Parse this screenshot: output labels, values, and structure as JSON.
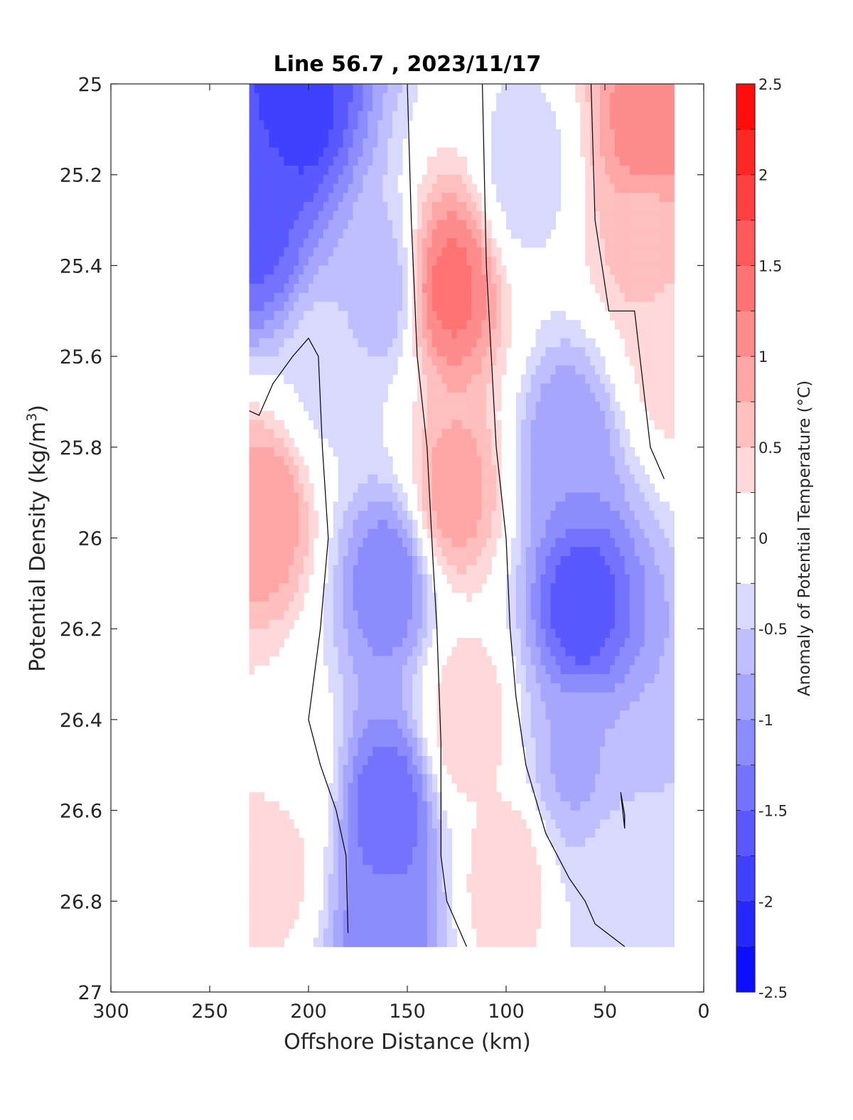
{
  "chart_data": {
    "type": "heatmap",
    "subtype": "filled-contour-section",
    "title": "Line 56.7 , 2023/11/17",
    "xlabel": "Offshore Distance (km)",
    "ylabel": "Potential Density (kg/m",
    "ylabel_sup": "3",
    "ylabel_close": ")",
    "xlim": [
      300,
      0
    ],
    "x_reversed": true,
    "ylim": [
      25,
      27
    ],
    "y_reversed": true,
    "xticks": [
      300,
      250,
      200,
      150,
      100,
      50,
      0
    ],
    "yticks": [
      "25",
      "25.2",
      "25.4",
      "25.6",
      "25.8",
      "26",
      "26.2",
      "26.4",
      "26.6",
      "26.8",
      "27"
    ],
    "colorbar": {
      "label": "Anomaly of Potential Temperature (°C)",
      "range": [
        -2.5,
        2.5
      ],
      "step": 0.25,
      "ticks": [
        "-2.5",
        "-2",
        "-1.5",
        "-1",
        "-0.5",
        "0",
        "0.5",
        "1",
        "1.5",
        "2",
        "2.5"
      ]
    },
    "zero_contour_color": "#000000",
    "data_extent": {
      "x": [
        15,
        230
      ],
      "y": [
        25,
        26.9
      ]
    },
    "cores": [
      {
        "x": 205,
        "y": 25.05,
        "value": -1.9
      },
      {
        "x": 225,
        "y": 25.3,
        "value": -1.6
      },
      {
        "x": 190,
        "y": 25.65,
        "value": -0.3
      },
      {
        "x": 222,
        "y": 25.95,
        "value": 1.0
      },
      {
        "x": 218,
        "y": 26.72,
        "value": 0.4
      },
      {
        "x": 210,
        "y": 26.5,
        "value": 0.2
      },
      {
        "x": 160,
        "y": 26.1,
        "value": -1.2
      },
      {
        "x": 160,
        "y": 26.6,
        "value": -1.5
      },
      {
        "x": 162,
        "y": 26.85,
        "value": -1.2
      },
      {
        "x": 165,
        "y": 25.45,
        "value": -0.7
      },
      {
        "x": 128,
        "y": 25.45,
        "value": 1.35
      },
      {
        "x": 126,
        "y": 25.9,
        "value": 0.9
      },
      {
        "x": 120,
        "y": 26.4,
        "value": 0.5
      },
      {
        "x": 100,
        "y": 26.75,
        "value": 0.5
      },
      {
        "x": 90,
        "y": 25.2,
        "value": -0.4
      },
      {
        "x": 62,
        "y": 26.15,
        "value": -1.7
      },
      {
        "x": 68,
        "y": 25.8,
        "value": -1.0
      },
      {
        "x": 65,
        "y": 26.5,
        "value": -0.8
      },
      {
        "x": 28,
        "y": 25.1,
        "value": 1.2
      },
      {
        "x": 30,
        "y": 25.35,
        "value": 0.6
      },
      {
        "x": 18,
        "y": 25.6,
        "value": 0.35
      },
      {
        "x": 35,
        "y": 26.62,
        "value": -0.5
      },
      {
        "x": 45,
        "y": 26.78,
        "value": -0.3
      }
    ],
    "zero_contours": [
      [
        [
          230,
          25.72
        ],
        [
          225,
          25.73
        ],
        [
          218,
          25.66
        ],
        [
          208,
          25.6
        ],
        [
          200,
          25.56
        ],
        [
          195,
          25.6
        ],
        [
          193,
          25.8
        ],
        [
          190,
          26.0
        ],
        [
          194,
          26.2
        ],
        [
          200,
          26.4
        ],
        [
          194,
          26.5
        ],
        [
          186,
          26.6
        ],
        [
          181,
          26.7
        ],
        [
          180,
          26.87
        ]
      ],
      [
        [
          150,
          25.0
        ],
        [
          148,
          25.3
        ],
        [
          145,
          25.6
        ],
        [
          140,
          25.8
        ],
        [
          137,
          26.05
        ],
        [
          135,
          26.2
        ],
        [
          133,
          26.45
        ],
        [
          133,
          26.7
        ],
        [
          130,
          26.8
        ],
        [
          120,
          26.9
        ]
      ],
      [
        [
          112,
          25.0
        ],
        [
          110,
          25.4
        ],
        [
          105,
          25.8
        ],
        [
          100,
          26.0
        ],
        [
          98,
          26.2
        ],
        [
          95,
          26.35
        ],
        [
          90,
          26.5
        ],
        [
          80,
          26.65
        ],
        [
          68,
          26.75
        ],
        [
          60,
          26.8
        ],
        [
          55,
          26.85
        ],
        [
          40,
          26.9
        ]
      ],
      [
        [
          57,
          25.0
        ],
        [
          55,
          25.3
        ],
        [
          48,
          25.5
        ],
        [
          35,
          25.5
        ],
        [
          27,
          25.8
        ],
        [
          20,
          25.87
        ]
      ],
      [
        [
          42,
          26.56
        ],
        [
          40,
          26.61
        ],
        [
          40,
          26.64
        ],
        [
          42,
          26.56
        ]
      ]
    ]
  }
}
